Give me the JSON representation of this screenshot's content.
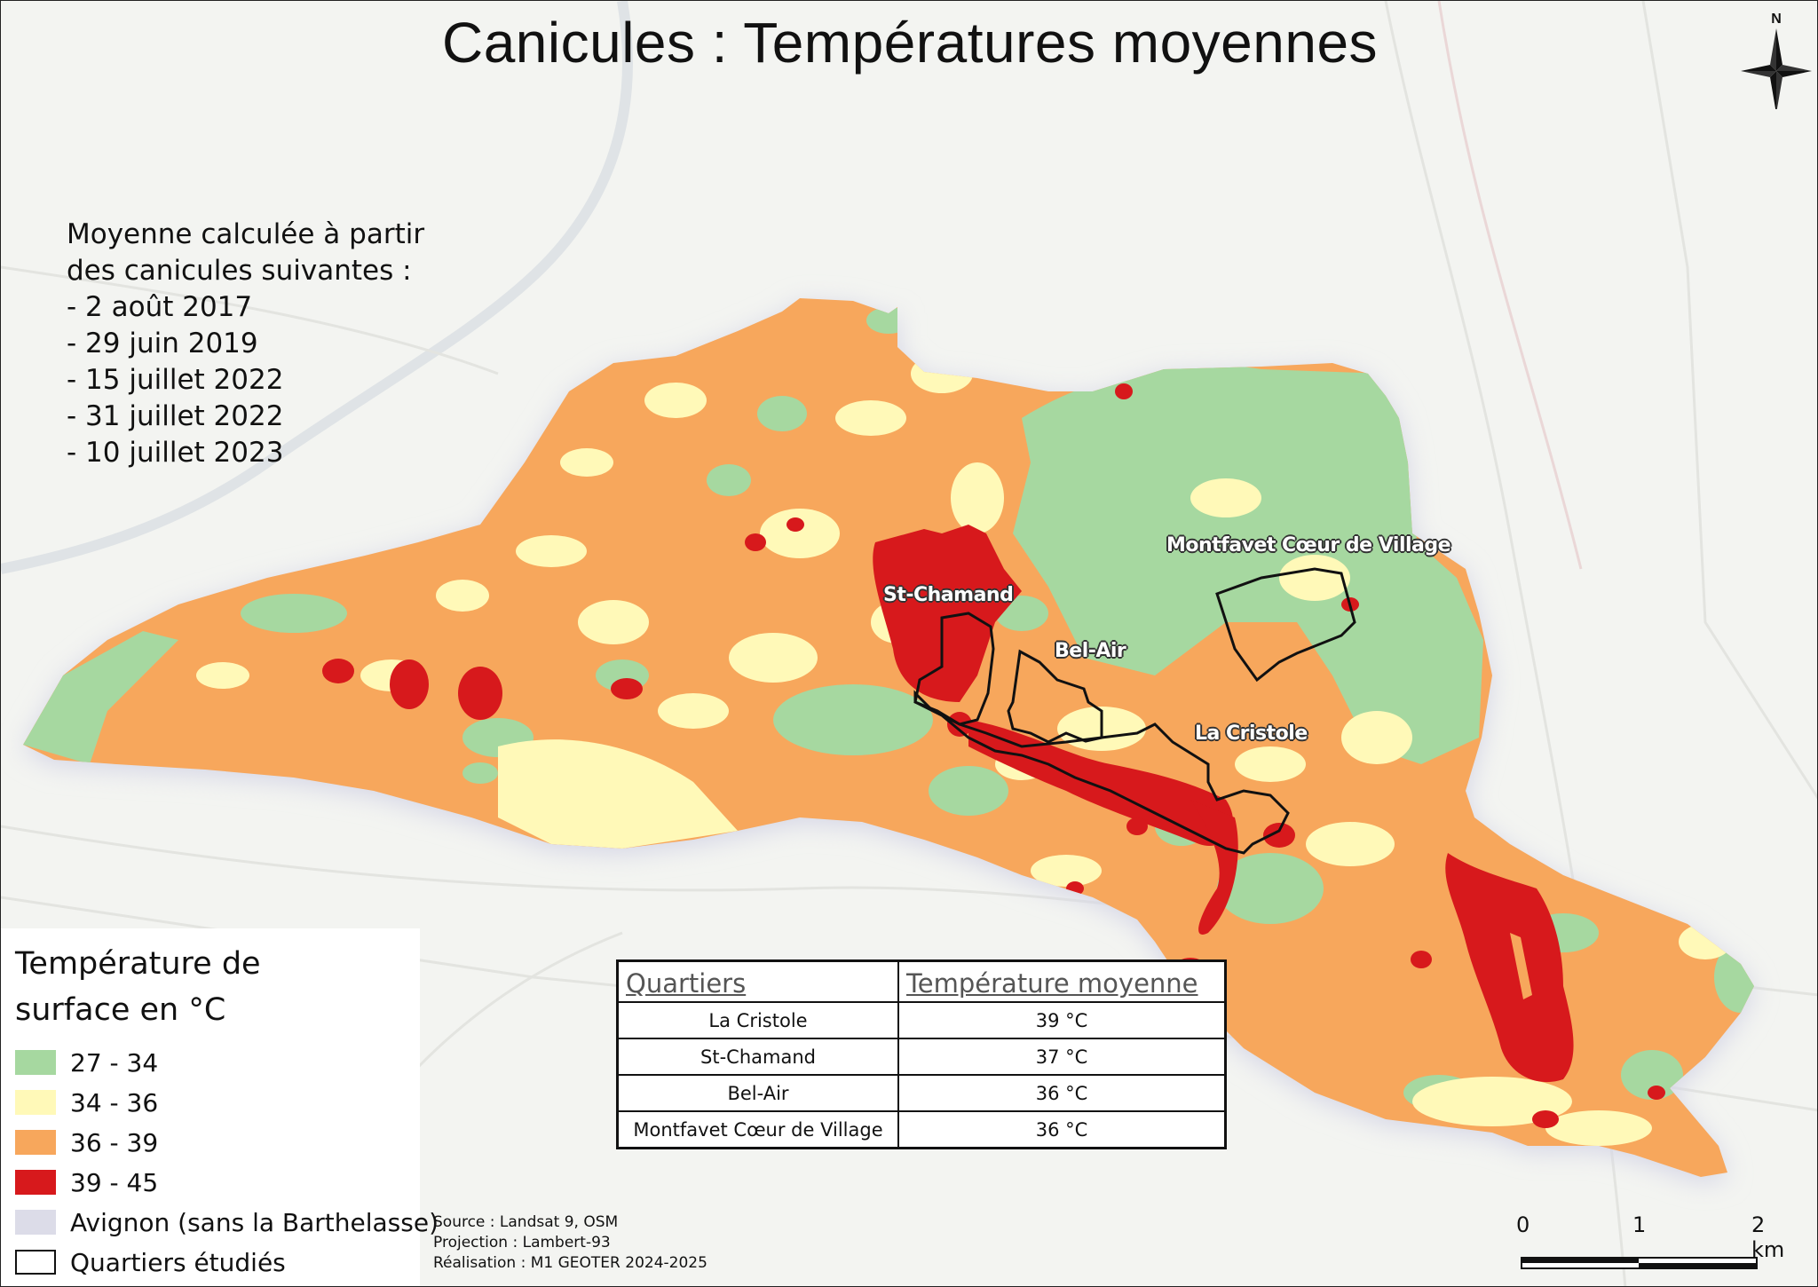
{
  "title": "Canicules : Températures moyennes",
  "north_arrow": {
    "label": "N",
    "icon": "compass-rose-icon"
  },
  "intro_lines": [
    "Moyenne calculée à partir",
    "des canicules suivantes :",
    "- 2 août 2017",
    "- 29 juin 2019",
    "- 15 juillet 2022",
    "- 31 juillet 2022",
    "- 10 juillet 2023"
  ],
  "map_labels": {
    "st_chamand": "St-Chamand",
    "bel_air": "Bel-Air",
    "la_cristole": "La Cristole",
    "montfavet": "Montfavet Cœur de Village"
  },
  "colors": {
    "class_27_34": "#a6d8a0",
    "class_34_36": "#fff9b8",
    "class_36_39": "#f7a75c",
    "class_39_45": "#d7191c",
    "avignon_halo": "#dcdce8",
    "quartier_outline": "#111111"
  },
  "legend": {
    "title_line1": "Température de",
    "title_line2": "surface en °C",
    "items": [
      {
        "label": "27 - 34",
        "color": "#a6d8a0"
      },
      {
        "label": "34 - 36",
        "color": "#fff9b8"
      },
      {
        "label": "36 - 39",
        "color": "#f7a75c"
      },
      {
        "label": "39 - 45",
        "color": "#d7191c"
      },
      {
        "label": "Avignon (sans la Barthelasse)",
        "color": "#dcdce8"
      },
      {
        "label": "Quartiers étudiés",
        "color": "#ffffff"
      }
    ]
  },
  "table": {
    "headers": [
      "Quartiers",
      "Température moyenne"
    ],
    "rows": [
      [
        "La Cristole",
        "39 °C"
      ],
      [
        "St-Chamand",
        "37 °C"
      ],
      [
        "Bel-Air",
        "36 °C"
      ],
      [
        "Montfavet Cœur de Village",
        "36 °C"
      ]
    ]
  },
  "source": {
    "line1": "Source : Landsat 9, OSM",
    "line2": "Projection : Lambert-93",
    "line3": "Réalisation : M1 GEOTER 2024-2025"
  },
  "scale_bar": {
    "labels": [
      "0",
      "1",
      "2 km"
    ]
  }
}
